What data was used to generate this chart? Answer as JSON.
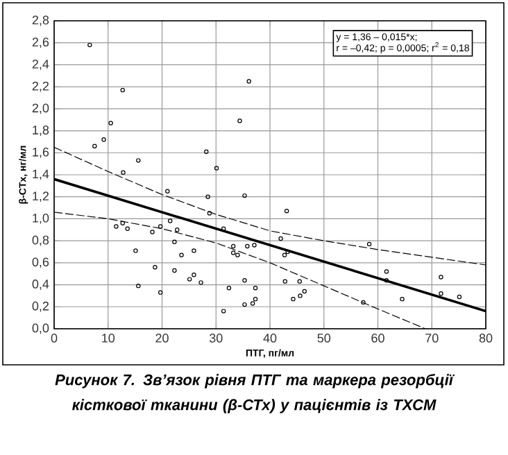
{
  "chart_data": {
    "type": "scatter",
    "title": "Рисунок 7. Зв’язок рівня ПТГ та маркера резорбції кісткової тканини (β-СТх) у пацієнтів із ТХСМ",
    "xlabel": "ПТГ, пг/мл",
    "ylabel": "β-CTx, нг/мл",
    "annotations": [
      "y = 1,36 – 0,015*x;",
      "r = –0,42; p = 0,0005; r$^{2}$ = 0,18"
    ],
    "xlim": [
      0,
      80
    ],
    "ylim": [
      0,
      2.8
    ],
    "xticks": [
      0,
      10,
      20,
      30,
      40,
      50,
      60,
      70,
      80
    ],
    "yticks": [
      {
        "value": 0,
        "label": "0,0"
      },
      {
        "value": 0.2,
        "label": "0,2"
      },
      {
        "value": 0.4,
        "label": "0,4"
      },
      {
        "value": 0.6,
        "label": "0,6"
      },
      {
        "value": 0.8,
        "label": "0,8"
      },
      {
        "value": 1.0,
        "label": "1,0"
      },
      {
        "value": 1.2,
        "label": "1,2"
      },
      {
        "value": 1.4,
        "label": "1,4"
      },
      {
        "value": 1.6,
        "label": "1,6"
      },
      {
        "value": 1.8,
        "label": "1,8"
      },
      {
        "value": 2.0,
        "label": "2,0"
      },
      {
        "value": 2.2,
        "label": "2,2"
      },
      {
        "value": 2.4,
        "label": "2,4"
      },
      {
        "value": 2.6,
        "label": "2,6"
      },
      {
        "value": 2.8,
        "label": "2,8"
      }
    ],
    "grid": true,
    "series": [
      {
        "marker": "circle",
        "color": "#000000",
        "x": [
          6.6,
          7.5,
          9.2,
          10.5,
          12.7,
          12.8,
          11.5,
          12.7,
          13.6,
          15.6,
          15.1,
          15.6,
          18.2,
          18.7,
          19.7,
          19.7,
          21.0,
          21.5,
          22.3,
          22.8,
          22.3,
          23.6,
          25.1,
          25.9,
          25.9,
          27.2,
          28.2,
          28.5,
          28.8,
          30.1,
          31.4,
          31.4,
          32.4,
          33.2,
          33.2,
          34.0,
          34.4,
          35.3,
          35.3,
          35.3,
          35.8,
          36.1,
          36.8,
          37.1,
          37.3,
          37.3,
          42.0,
          42.7,
          43.1,
          43.3,
          42.8,
          44.3,
          45.5,
          45.6,
          46.4,
          57.3,
          58.4,
          61.6,
          61.6,
          64.5,
          71.7,
          71.7,
          75.1
        ],
        "values": [
          2.58,
          1.66,
          1.72,
          1.87,
          2.17,
          1.42,
          0.93,
          0.96,
          0.91,
          1.53,
          0.71,
          0.39,
          0.88,
          0.56,
          0.93,
          0.33,
          1.25,
          0.98,
          0.79,
          0.9,
          0.53,
          0.67,
          0.45,
          0.49,
          0.71,
          0.42,
          1.61,
          1.2,
          1.05,
          1.46,
          0.91,
          0.16,
          0.37,
          0.75,
          0.69,
          0.67,
          1.89,
          1.21,
          0.44,
          0.22,
          0.75,
          2.25,
          0.23,
          0.76,
          0.37,
          0.27,
          0.82,
          0.67,
          1.07,
          0.7,
          0.43,
          0.27,
          0.43,
          0.3,
          0.34,
          0.24,
          0.77,
          0.52,
          0.44,
          0.27,
          0.47,
          0.32,
          0.29
        ]
      },
      {
        "type": "line",
        "marker": "none",
        "line_style": "solid",
        "color": "#000000",
        "x": [
          0,
          80
        ],
        "values": [
          1.36,
          0.16
        ]
      },
      {
        "type": "line",
        "marker": "none",
        "line_style": "dashed",
        "color": "#000000",
        "x": [
          0,
          10,
          20,
          30,
          40,
          50,
          60,
          70,
          80
        ],
        "values": [
          1.65,
          1.43,
          1.22,
          1.04,
          0.89,
          0.8,
          0.72,
          0.65,
          0.58
        ]
      },
      {
        "type": "line",
        "marker": "none",
        "line_style": "dashed",
        "color": "#000000",
        "x": [
          0,
          10,
          20,
          30,
          40,
          50,
          60,
          68.8
        ],
        "values": [
          1.06,
          1.0,
          0.91,
          0.78,
          0.6,
          0.39,
          0.18,
          0.0
        ]
      }
    ]
  }
}
